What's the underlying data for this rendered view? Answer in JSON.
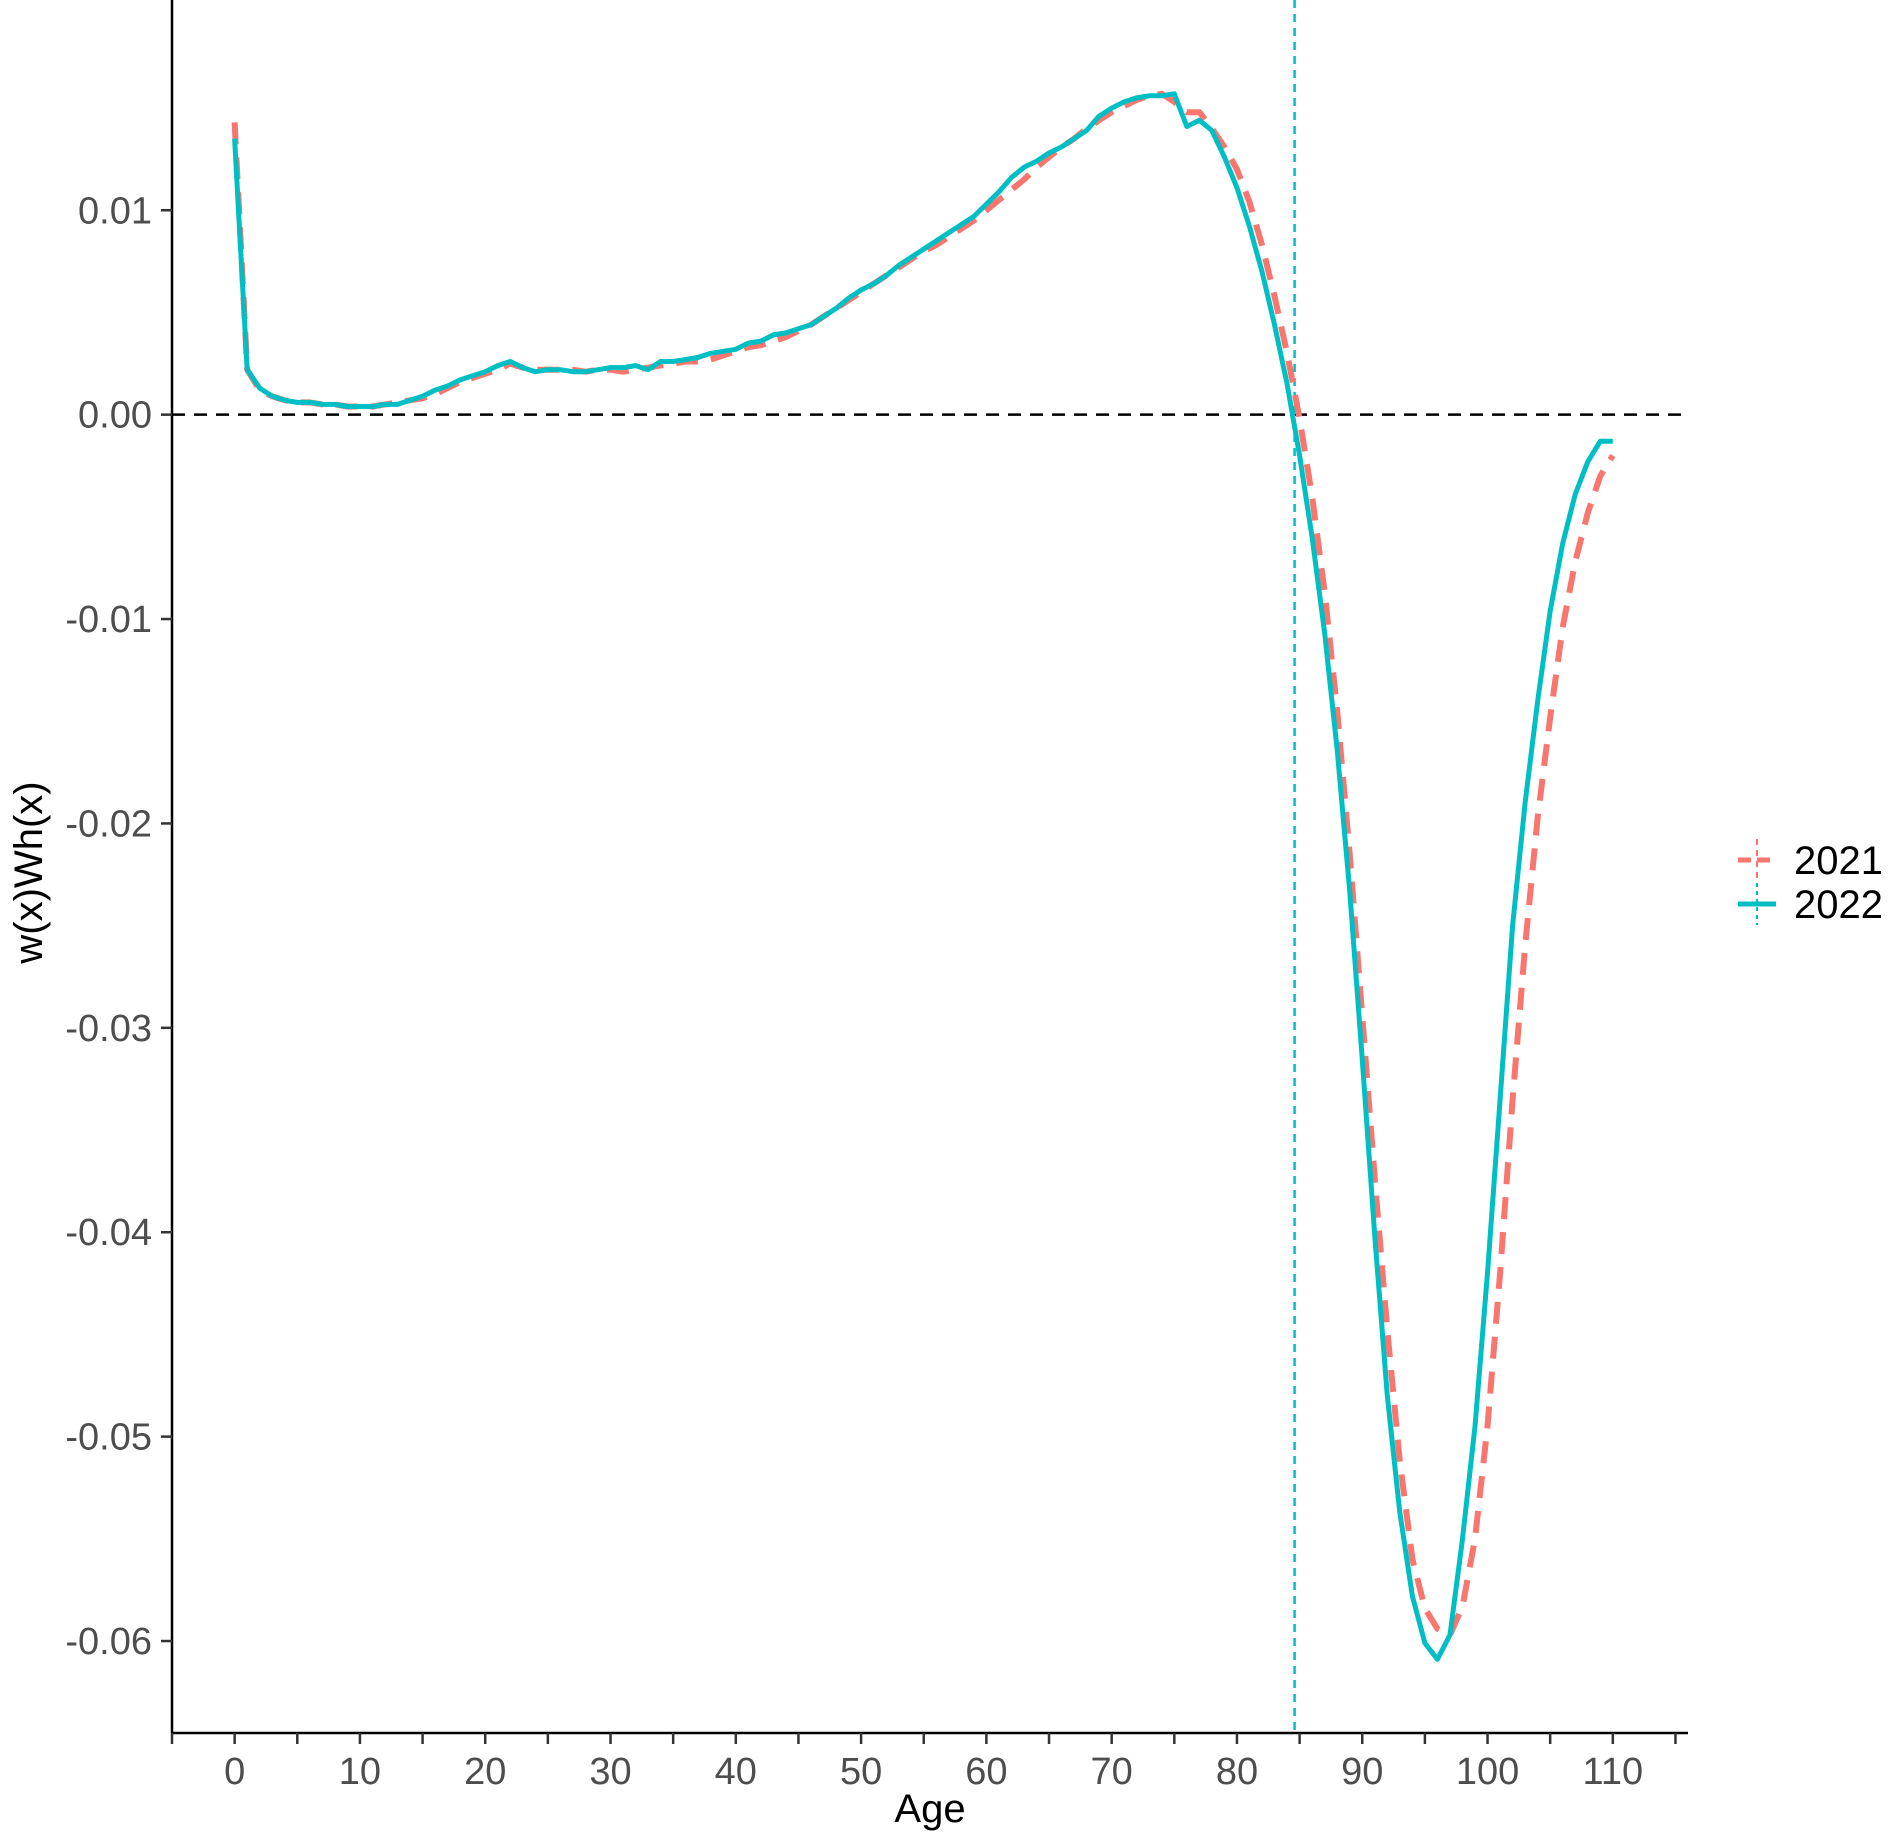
{
  "chart_data": {
    "type": "line",
    "title": "",
    "xlabel": "Age",
    "ylabel": "w(x)Wh(x)",
    "xlim": [
      -5,
      116
    ],
    "ylim": [
      -0.0645,
      0.0197
    ],
    "x_ticks": [
      0,
      10,
      20,
      30,
      40,
      50,
      60,
      70,
      80,
      90,
      100,
      110
    ],
    "x_tick_labels": [
      "0",
      "10",
      "20",
      "30",
      "40",
      "50",
      "60",
      "70",
      "80",
      "90",
      "100",
      "110"
    ],
    "y_ticks": [
      0.01,
      0.0,
      -0.01,
      -0.02,
      -0.03,
      -0.04,
      -0.05,
      -0.06
    ],
    "y_tick_labels": [
      "0.01",
      "0.00",
      "-0.01",
      "-0.02",
      "-0.03",
      "-0.04",
      "-0.05",
      "-0.06"
    ],
    "grid": false,
    "legend_position": "right",
    "reference_lines": [
      {
        "orientation": "horizontal",
        "value": 0.0,
        "color": "#000000",
        "style": "dashed"
      },
      {
        "orientation": "vertical",
        "value": 84.6,
        "color": "#00BFC4",
        "style": "dashed"
      }
    ],
    "series": [
      {
        "name": "2021",
        "color": "#F8766D",
        "style": "dashed",
        "points": [
          [
            0,
            0.0143
          ],
          [
            1,
            0.0022
          ],
          [
            2,
            0.0012
          ],
          [
            3,
            0.0009
          ],
          [
            4,
            0.0007
          ],
          [
            5,
            0.0006
          ],
          [
            6,
            0.0006
          ],
          [
            7,
            0.0005
          ],
          [
            8,
            0.0005
          ],
          [
            9,
            0.0004
          ],
          [
            10,
            0.0004
          ],
          [
            11,
            0.0004
          ],
          [
            12,
            0.0005
          ],
          [
            13,
            0.0006
          ],
          [
            14,
            0.0007
          ],
          [
            15,
            0.0008
          ],
          [
            16,
            0.001
          ],
          [
            17,
            0.0013
          ],
          [
            18,
            0.0016
          ],
          [
            19,
            0.0018
          ],
          [
            20,
            0.002
          ],
          [
            21,
            0.0022
          ],
          [
            22,
            0.0025
          ],
          [
            23,
            0.0023
          ],
          [
            24,
            0.0022
          ],
          [
            25,
            0.0022
          ],
          [
            26,
            0.0022
          ],
          [
            27,
            0.0022
          ],
          [
            28,
            0.0021
          ],
          [
            29,
            0.0022
          ],
          [
            30,
            0.0022
          ],
          [
            31,
            0.0021
          ],
          [
            32,
            0.0022
          ],
          [
            33,
            0.0023
          ],
          [
            34,
            0.0024
          ],
          [
            35,
            0.0025
          ],
          [
            36,
            0.0026
          ],
          [
            37,
            0.0026
          ],
          [
            38,
            0.0027
          ],
          [
            39,
            0.0029
          ],
          [
            40,
            0.0031
          ],
          [
            41,
            0.0033
          ],
          [
            42,
            0.0034
          ],
          [
            43,
            0.0036
          ],
          [
            44,
            0.0038
          ],
          [
            45,
            0.0041
          ],
          [
            46,
            0.0044
          ],
          [
            47,
            0.0048
          ],
          [
            48,
            0.0052
          ],
          [
            49,
            0.0056
          ],
          [
            50,
            0.006
          ],
          [
            51,
            0.0064
          ],
          [
            52,
            0.0068
          ],
          [
            53,
            0.0072
          ],
          [
            54,
            0.0076
          ],
          [
            55,
            0.008
          ],
          [
            56,
            0.0083
          ],
          [
            57,
            0.0087
          ],
          [
            58,
            0.0091
          ],
          [
            59,
            0.0095
          ],
          [
            60,
            0.01
          ],
          [
            61,
            0.0105
          ],
          [
            62,
            0.011
          ],
          [
            63,
            0.0115
          ],
          [
            64,
            0.0121
          ],
          [
            65,
            0.0126
          ],
          [
            66,
            0.0131
          ],
          [
            67,
            0.0135
          ],
          [
            68,
            0.014
          ],
          [
            69,
            0.0144
          ],
          [
            70,
            0.0148
          ],
          [
            71,
            0.0151
          ],
          [
            72,
            0.0154
          ],
          [
            73,
            0.0156
          ],
          [
            74,
            0.0157
          ],
          [
            75,
            0.0153
          ],
          [
            76,
            0.0148
          ],
          [
            77,
            0.0148
          ],
          [
            78,
            0.014
          ],
          [
            79,
            0.0131
          ],
          [
            80,
            0.012
          ],
          [
            81,
            0.0104
          ],
          [
            82,
            0.0083
          ],
          [
            83,
            0.0058
          ],
          [
            84,
            0.003
          ],
          [
            85,
            -0.0002
          ],
          [
            86,
            -0.004
          ],
          [
            87,
            -0.0087
          ],
          [
            88,
            -0.0145
          ],
          [
            89,
            -0.0215
          ],
          [
            90,
            -0.0294
          ],
          [
            91,
            -0.0374
          ],
          [
            92,
            -0.0448
          ],
          [
            93,
            -0.0512
          ],
          [
            94,
            -0.056
          ],
          [
            95,
            -0.0584
          ],
          [
            96,
            -0.0594
          ],
          [
            97,
            -0.0597
          ],
          [
            98,
            -0.0583
          ],
          [
            99,
            -0.055
          ],
          [
            100,
            -0.0495
          ],
          [
            101,
            -0.042
          ],
          [
            102,
            -0.0335
          ],
          [
            103,
            -0.026
          ],
          [
            104,
            -0.0197
          ],
          [
            105,
            -0.0148
          ],
          [
            106,
            -0.0104
          ],
          [
            107,
            -0.0072
          ],
          [
            108,
            -0.0048
          ],
          [
            109,
            -0.003
          ],
          [
            110,
            -0.002
          ]
        ]
      },
      {
        "name": "2022",
        "color": "#00BFC4",
        "style": "solid",
        "points": [
          [
            0,
            0.0135
          ],
          [
            1,
            0.0022
          ],
          [
            2,
            0.0013
          ],
          [
            3,
            0.0009
          ],
          [
            4,
            0.0007
          ],
          [
            5,
            0.0006
          ],
          [
            6,
            0.0006
          ],
          [
            7,
            0.0005
          ],
          [
            8,
            0.0005
          ],
          [
            9,
            0.0004
          ],
          [
            10,
            0.0004
          ],
          [
            11,
            0.0004
          ],
          [
            12,
            0.0005
          ],
          [
            13,
            0.0005
          ],
          [
            14,
            0.0007
          ],
          [
            15,
            0.0009
          ],
          [
            16,
            0.0012
          ],
          [
            17,
            0.0014
          ],
          [
            18,
            0.0017
          ],
          [
            19,
            0.0019
          ],
          [
            20,
            0.0021
          ],
          [
            21,
            0.0024
          ],
          [
            22,
            0.0026
          ],
          [
            23,
            0.0023
          ],
          [
            24,
            0.0021
          ],
          [
            25,
            0.0022
          ],
          [
            26,
            0.0022
          ],
          [
            27,
            0.0021
          ],
          [
            28,
            0.0021
          ],
          [
            29,
            0.0022
          ],
          [
            30,
            0.0023
          ],
          [
            31,
            0.0023
          ],
          [
            32,
            0.0024
          ],
          [
            33,
            0.0022
          ],
          [
            34,
            0.0026
          ],
          [
            35,
            0.0026
          ],
          [
            36,
            0.0027
          ],
          [
            37,
            0.0028
          ],
          [
            38,
            0.003
          ],
          [
            39,
            0.0031
          ],
          [
            40,
            0.0032
          ],
          [
            41,
            0.0035
          ],
          [
            42,
            0.0036
          ],
          [
            43,
            0.0039
          ],
          [
            44,
            0.004
          ],
          [
            45,
            0.0042
          ],
          [
            46,
            0.0044
          ],
          [
            47,
            0.0048
          ],
          [
            48,
            0.0052
          ],
          [
            49,
            0.0057
          ],
          [
            50,
            0.0061
          ],
          [
            51,
            0.0064
          ],
          [
            52,
            0.0068
          ],
          [
            53,
            0.0073
          ],
          [
            54,
            0.0077
          ],
          [
            55,
            0.0081
          ],
          [
            56,
            0.0085
          ],
          [
            57,
            0.0089
          ],
          [
            58,
            0.0093
          ],
          [
            59,
            0.0097
          ],
          [
            60,
            0.0103
          ],
          [
            61,
            0.0109
          ],
          [
            62,
            0.0116
          ],
          [
            63,
            0.0121
          ],
          [
            64,
            0.0124
          ],
          [
            65,
            0.0128
          ],
          [
            66,
            0.0131
          ],
          [
            67,
            0.0135
          ],
          [
            68,
            0.0139
          ],
          [
            69,
            0.0146
          ],
          [
            70,
            0.015
          ],
          [
            71,
            0.0153
          ],
          [
            72,
            0.0155
          ],
          [
            73,
            0.0156
          ],
          [
            74,
            0.0156
          ],
          [
            75,
            0.0157
          ],
          [
            76,
            0.0141
          ],
          [
            77,
            0.0144
          ],
          [
            78,
            0.0139
          ],
          [
            79,
            0.0126
          ],
          [
            80,
            0.0111
          ],
          [
            81,
            0.0092
          ],
          [
            82,
            0.007
          ],
          [
            83,
            0.0044
          ],
          [
            84,
            0.0015
          ],
          [
            85,
            -0.002
          ],
          [
            86,
            -0.006
          ],
          [
            87,
            -0.0107
          ],
          [
            88,
            -0.0164
          ],
          [
            89,
            -0.0233
          ],
          [
            90,
            -0.0315
          ],
          [
            91,
            -0.0402
          ],
          [
            92,
            -0.048
          ],
          [
            93,
            -0.0537
          ],
          [
            94,
            -0.0578
          ],
          [
            95,
            -0.0601
          ],
          [
            96,
            -0.0609
          ],
          [
            97,
            -0.0597
          ],
          [
            98,
            -0.055
          ],
          [
            99,
            -0.0495
          ],
          [
            100,
            -0.042
          ],
          [
            101,
            -0.0335
          ],
          [
            102,
            -0.025
          ],
          [
            103,
            -0.019
          ],
          [
            104,
            -0.014
          ],
          [
            105,
            -0.0096
          ],
          [
            106,
            -0.0063
          ],
          [
            107,
            -0.0039
          ],
          [
            108,
            -0.0023
          ],
          [
            109,
            -0.0013
          ],
          [
            110,
            -0.0013
          ]
        ]
      }
    ]
  }
}
